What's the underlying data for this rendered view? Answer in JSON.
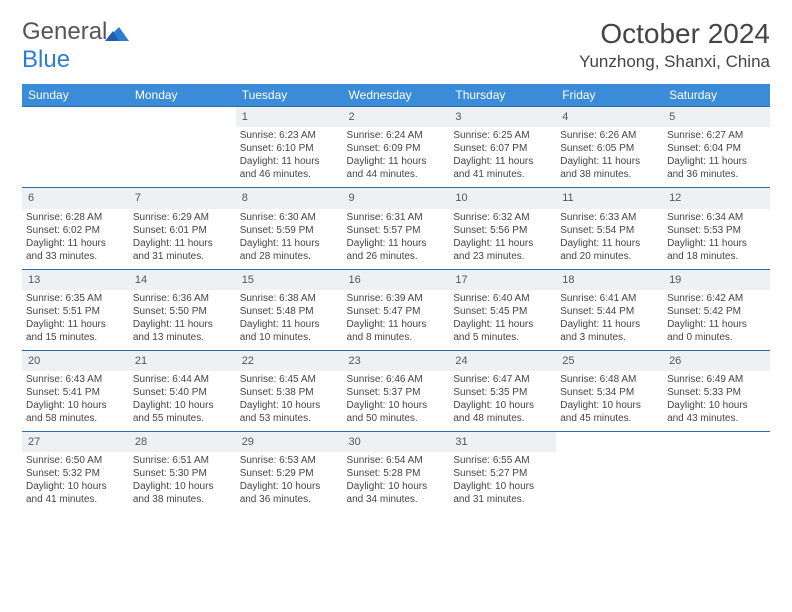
{
  "brand": {
    "part1": "General",
    "part2": "Blue"
  },
  "title": "October 2024",
  "location": "Yunzhong, Shanxi, China",
  "header_bg": "#3a8bd8",
  "daynum_bg": "#eef1f4",
  "border_color": "#2e6ca8",
  "text_color": "#454545",
  "columns": [
    "Sunday",
    "Monday",
    "Tuesday",
    "Wednesday",
    "Thursday",
    "Friday",
    "Saturday"
  ],
  "weeks": [
    [
      null,
      null,
      {
        "n": "1",
        "sr": "Sunrise: 6:23 AM",
        "ss": "Sunset: 6:10 PM",
        "d1": "Daylight: 11 hours",
        "d2": "and 46 minutes."
      },
      {
        "n": "2",
        "sr": "Sunrise: 6:24 AM",
        "ss": "Sunset: 6:09 PM",
        "d1": "Daylight: 11 hours",
        "d2": "and 44 minutes."
      },
      {
        "n": "3",
        "sr": "Sunrise: 6:25 AM",
        "ss": "Sunset: 6:07 PM",
        "d1": "Daylight: 11 hours",
        "d2": "and 41 minutes."
      },
      {
        "n": "4",
        "sr": "Sunrise: 6:26 AM",
        "ss": "Sunset: 6:05 PM",
        "d1": "Daylight: 11 hours",
        "d2": "and 38 minutes."
      },
      {
        "n": "5",
        "sr": "Sunrise: 6:27 AM",
        "ss": "Sunset: 6:04 PM",
        "d1": "Daylight: 11 hours",
        "d2": "and 36 minutes."
      }
    ],
    [
      {
        "n": "6",
        "sr": "Sunrise: 6:28 AM",
        "ss": "Sunset: 6:02 PM",
        "d1": "Daylight: 11 hours",
        "d2": "and 33 minutes."
      },
      {
        "n": "7",
        "sr": "Sunrise: 6:29 AM",
        "ss": "Sunset: 6:01 PM",
        "d1": "Daylight: 11 hours",
        "d2": "and 31 minutes."
      },
      {
        "n": "8",
        "sr": "Sunrise: 6:30 AM",
        "ss": "Sunset: 5:59 PM",
        "d1": "Daylight: 11 hours",
        "d2": "and 28 minutes."
      },
      {
        "n": "9",
        "sr": "Sunrise: 6:31 AM",
        "ss": "Sunset: 5:57 PM",
        "d1": "Daylight: 11 hours",
        "d2": "and 26 minutes."
      },
      {
        "n": "10",
        "sr": "Sunrise: 6:32 AM",
        "ss": "Sunset: 5:56 PM",
        "d1": "Daylight: 11 hours",
        "d2": "and 23 minutes."
      },
      {
        "n": "11",
        "sr": "Sunrise: 6:33 AM",
        "ss": "Sunset: 5:54 PM",
        "d1": "Daylight: 11 hours",
        "d2": "and 20 minutes."
      },
      {
        "n": "12",
        "sr": "Sunrise: 6:34 AM",
        "ss": "Sunset: 5:53 PM",
        "d1": "Daylight: 11 hours",
        "d2": "and 18 minutes."
      }
    ],
    [
      {
        "n": "13",
        "sr": "Sunrise: 6:35 AM",
        "ss": "Sunset: 5:51 PM",
        "d1": "Daylight: 11 hours",
        "d2": "and 15 minutes."
      },
      {
        "n": "14",
        "sr": "Sunrise: 6:36 AM",
        "ss": "Sunset: 5:50 PM",
        "d1": "Daylight: 11 hours",
        "d2": "and 13 minutes."
      },
      {
        "n": "15",
        "sr": "Sunrise: 6:38 AM",
        "ss": "Sunset: 5:48 PM",
        "d1": "Daylight: 11 hours",
        "d2": "and 10 minutes."
      },
      {
        "n": "16",
        "sr": "Sunrise: 6:39 AM",
        "ss": "Sunset: 5:47 PM",
        "d1": "Daylight: 11 hours",
        "d2": "and 8 minutes."
      },
      {
        "n": "17",
        "sr": "Sunrise: 6:40 AM",
        "ss": "Sunset: 5:45 PM",
        "d1": "Daylight: 11 hours",
        "d2": "and 5 minutes."
      },
      {
        "n": "18",
        "sr": "Sunrise: 6:41 AM",
        "ss": "Sunset: 5:44 PM",
        "d1": "Daylight: 11 hours",
        "d2": "and 3 minutes."
      },
      {
        "n": "19",
        "sr": "Sunrise: 6:42 AM",
        "ss": "Sunset: 5:42 PM",
        "d1": "Daylight: 11 hours",
        "d2": "and 0 minutes."
      }
    ],
    [
      {
        "n": "20",
        "sr": "Sunrise: 6:43 AM",
        "ss": "Sunset: 5:41 PM",
        "d1": "Daylight: 10 hours",
        "d2": "and 58 minutes."
      },
      {
        "n": "21",
        "sr": "Sunrise: 6:44 AM",
        "ss": "Sunset: 5:40 PM",
        "d1": "Daylight: 10 hours",
        "d2": "and 55 minutes."
      },
      {
        "n": "22",
        "sr": "Sunrise: 6:45 AM",
        "ss": "Sunset: 5:38 PM",
        "d1": "Daylight: 10 hours",
        "d2": "and 53 minutes."
      },
      {
        "n": "23",
        "sr": "Sunrise: 6:46 AM",
        "ss": "Sunset: 5:37 PM",
        "d1": "Daylight: 10 hours",
        "d2": "and 50 minutes."
      },
      {
        "n": "24",
        "sr": "Sunrise: 6:47 AM",
        "ss": "Sunset: 5:35 PM",
        "d1": "Daylight: 10 hours",
        "d2": "and 48 minutes."
      },
      {
        "n": "25",
        "sr": "Sunrise: 6:48 AM",
        "ss": "Sunset: 5:34 PM",
        "d1": "Daylight: 10 hours",
        "d2": "and 45 minutes."
      },
      {
        "n": "26",
        "sr": "Sunrise: 6:49 AM",
        "ss": "Sunset: 5:33 PM",
        "d1": "Daylight: 10 hours",
        "d2": "and 43 minutes."
      }
    ],
    [
      {
        "n": "27",
        "sr": "Sunrise: 6:50 AM",
        "ss": "Sunset: 5:32 PM",
        "d1": "Daylight: 10 hours",
        "d2": "and 41 minutes."
      },
      {
        "n": "28",
        "sr": "Sunrise: 6:51 AM",
        "ss": "Sunset: 5:30 PM",
        "d1": "Daylight: 10 hours",
        "d2": "and 38 minutes."
      },
      {
        "n": "29",
        "sr": "Sunrise: 6:53 AM",
        "ss": "Sunset: 5:29 PM",
        "d1": "Daylight: 10 hours",
        "d2": "and 36 minutes."
      },
      {
        "n": "30",
        "sr": "Sunrise: 6:54 AM",
        "ss": "Sunset: 5:28 PM",
        "d1": "Daylight: 10 hours",
        "d2": "and 34 minutes."
      },
      {
        "n": "31",
        "sr": "Sunrise: 6:55 AM",
        "ss": "Sunset: 5:27 PM",
        "d1": "Daylight: 10 hours",
        "d2": "and 31 minutes."
      },
      null,
      null
    ]
  ]
}
